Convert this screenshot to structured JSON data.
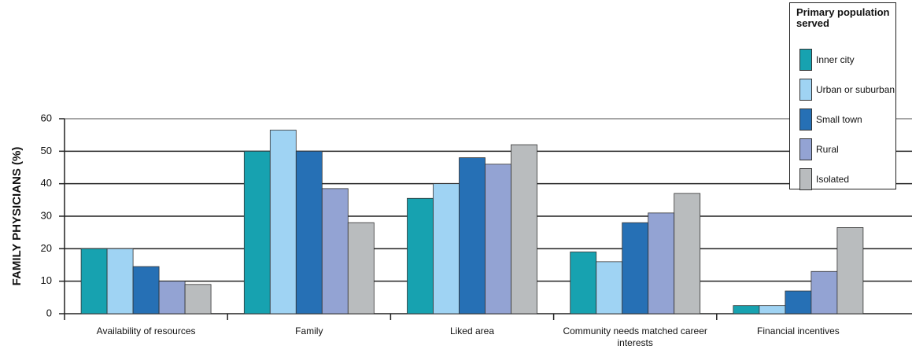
{
  "chart_data": {
    "type": "bar",
    "y_label": "FAMILY PHYSICIANS (%)",
    "legend_title": "Primary population served",
    "categories": [
      "Availability of resources",
      "Family",
      "Liked area",
      "Community needs matched career interests",
      "Financial incentives"
    ],
    "series": [
      {
        "name": "Inner city",
        "color": "#17a2b0",
        "values": [
          20,
          50,
          35.5,
          19,
          2.5
        ]
      },
      {
        "name": "Urban or suburban",
        "color": "#9fd3f3",
        "values": [
          20,
          56.5,
          40,
          16,
          2.5
        ]
      },
      {
        "name": "Small town",
        "color": "#2670b5",
        "values": [
          14.5,
          50,
          48,
          28,
          7
        ]
      },
      {
        "name": "Rural",
        "color": "#93a3d3",
        "values": [
          10,
          38.5,
          46,
          31,
          13
        ]
      },
      {
        "name": "Isolated",
        "color": "#b9bcbe",
        "values": [
          9,
          28,
          52,
          37,
          26.5
        ]
      }
    ],
    "ylim": [
      0,
      60
    ],
    "yticks": [
      0,
      10,
      20,
      30,
      40,
      50,
      60
    ],
    "grid": true
  }
}
